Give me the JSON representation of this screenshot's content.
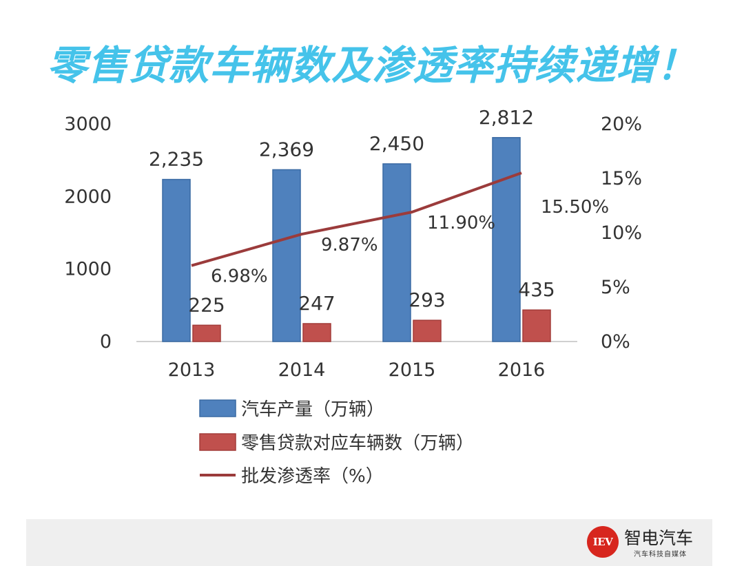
{
  "slide": {
    "title": "零售贷款车辆数及渗透率持续递增！"
  },
  "brand": {
    "logo_text": "IEV",
    "name": "智电汽车",
    "tagline": "汽车科技自媒体"
  },
  "chart_data": {
    "type": "bar",
    "categories": [
      "2013",
      "2014",
      "2015",
      "2016"
    ],
    "series": [
      {
        "name": "汽车产量（万辆）",
        "type": "bar",
        "axis": "left",
        "color": "#4f81bd",
        "values": [
          2235,
          2369,
          2450,
          2812
        ],
        "labels": [
          "2,235",
          "2,369",
          "2,450",
          "2,812"
        ]
      },
      {
        "name": "零售贷款对应车辆数（万辆）",
        "type": "bar",
        "axis": "left",
        "color": "#c0504d",
        "values": [
          225,
          247,
          293,
          435
        ],
        "labels": [
          "225",
          "247",
          "293",
          "435"
        ]
      },
      {
        "name": "批发渗透率（%）",
        "type": "line",
        "axis": "right",
        "color": "#9b3b3b",
        "values": [
          6.98,
          9.87,
          11.9,
          15.5
        ],
        "labels": [
          "6.98%",
          "9.87%",
          "11.90%",
          "15.50%"
        ]
      }
    ],
    "y_left": {
      "range": [
        0,
        3000
      ],
      "ticks": [
        "0",
        "1000",
        "2000",
        "3000"
      ]
    },
    "y_right": {
      "range": [
        0,
        20
      ],
      "ticks": [
        "0%",
        "5%",
        "10%",
        "15%",
        "20%"
      ]
    },
    "legend_position": "bottom",
    "grid": false
  }
}
